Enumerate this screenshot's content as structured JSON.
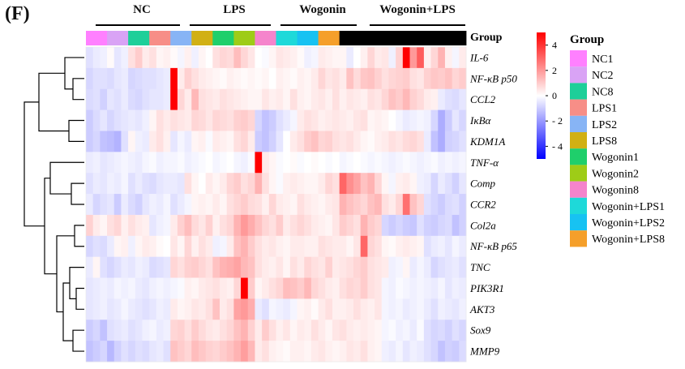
{
  "panel_label": "(F)",
  "group_headers": [
    "NC",
    "LPS",
    "Wogonin",
    "Wogonin+LPS"
  ],
  "colors": {
    "annotation": [
      "#ff80ff",
      "#d9a3f5",
      "#1ecf99",
      "#f78e87",
      "#87b4f5",
      "#d1b014",
      "#1fcf6b",
      "#9ecc17",
      "#f584cc",
      "#1ed9d9",
      "#17c2f2",
      "#f59f2a"
    ],
    "scale": {
      "low": "#0000ff",
      "mid": "#ffffff",
      "high": "#ff0000"
    }
  },
  "chart_data": {
    "type": "heatmap",
    "title": "",
    "annotation_title": "Group",
    "legend_title": "Group",
    "legend_entries": [
      "NC1",
      "NC2",
      "NC8",
      "LPS1",
      "LPS2",
      "LPS8",
      "Wogonin1",
      "Wogonin2",
      "Wogonin8",
      "Wogonin+LPS1",
      "Wogonin+LPS2",
      "Wogonin+LPS8"
    ],
    "color_scale": {
      "min": -5,
      "max": 5,
      "ticks": [
        4,
        2,
        0,
        -2,
        -4
      ]
    },
    "samples_per_group": 3,
    "rows": [
      "IL-6",
      "NF-κB p50",
      "CCL2",
      "IκBα",
      "KDM1A",
      "TNF-α",
      "Comp",
      "CCR2",
      "Col2a",
      "NF-κB p65",
      "TNC",
      "PIK3R1",
      "AKT3",
      "Sox9",
      "MMP9"
    ],
    "values": [
      [
        -0.6,
        -0.4,
        -0.3,
        0.1,
        -0.5,
        -0.3,
        0.6,
        1.0,
        0.4,
        0.6,
        0.2,
        0.3,
        0.1,
        -0.2,
        0.3,
        -0.3,
        0.2,
        0.0,
        0.6,
        0.8,
        0.7,
        1.3,
        0.8,
        0.5,
        0.0,
        -0.1,
        0.2,
        0.5,
        0.4,
        0.3,
        0.1,
        -0.3,
        -0.2,
        0.4,
        0.3,
        0.2,
        0.2,
        -0.4,
        0.0,
        0.3,
        0.8,
        0.4,
        0.5,
        -0.3,
        0.9,
        5.0,
        2.0,
        3.2,
        0.3,
        0.8,
        1.5,
        0.3,
        -0.2,
        0.4
      ],
      [
        -0.8,
        -0.6,
        -0.6,
        -0.7,
        -0.5,
        -0.4,
        -0.8,
        -0.7,
        -0.6,
        -0.6,
        -0.5,
        -0.4,
        5.0,
        0.4,
        0.9,
        0.6,
        0.4,
        0.3,
        0.2,
        0.1,
        0.3,
        0.2,
        0.1,
        0.2,
        0.1,
        0.2,
        0.0,
        0.3,
        0.2,
        0.1,
        0.3,
        0.2,
        0.4,
        0.8,
        0.5,
        0.6,
        0.4,
        1.2,
        0.7,
        1.1,
        1.2,
        0.9,
        0.6,
        0.8,
        0.9,
        1.0,
        0.6,
        0.5,
        0.9,
        1.1,
        1.0,
        1.2,
        0.8,
        1.0
      ],
      [
        -0.7,
        -0.6,
        -0.9,
        -0.5,
        -0.6,
        -0.4,
        -0.7,
        -0.8,
        -0.6,
        -0.5,
        -0.5,
        -0.4,
        5.0,
        0.8,
        0.4,
        1.4,
        0.6,
        0.5,
        0.4,
        0.6,
        0.5,
        0.4,
        0.3,
        0.2,
        0.2,
        0.5,
        0.3,
        0.4,
        0.2,
        0.6,
        0.3,
        0.2,
        0.4,
        0.5,
        0.3,
        0.6,
        0.3,
        0.5,
        0.4,
        0.3,
        0.6,
        0.5,
        0.8,
        1.2,
        1.0,
        1.4,
        0.9,
        0.7,
        0.4,
        0.3,
        -0.4,
        -0.6,
        -0.7,
        -0.5
      ],
      [
        -1.0,
        -0.7,
        -0.5,
        -0.8,
        -0.6,
        -0.5,
        -0.4,
        -0.5,
        -0.3,
        0.2,
        0.6,
        0.4,
        0.6,
        0.5,
        0.4,
        0.8,
        0.7,
        0.5,
        0.8,
        0.7,
        0.6,
        0.9,
        1.0,
        0.8,
        -0.8,
        -1.2,
        -1.0,
        -0.6,
        -0.4,
        -0.2,
        0.4,
        0.6,
        0.5,
        0.3,
        0.4,
        0.5,
        0.4,
        0.3,
        0.5,
        0.6,
        0.2,
        0.3,
        0.2,
        0.0,
        -0.2,
        -0.4,
        -0.3,
        -0.2,
        -0.3,
        -0.8,
        -1.6,
        -1.0,
        -0.5,
        -0.8
      ],
      [
        -1.0,
        -0.8,
        -1.2,
        -1.3,
        -1.5,
        -0.6,
        0.2,
        -0.3,
        -0.4,
        0.4,
        0.6,
        0.3,
        -0.5,
        -0.2,
        -0.4,
        0.2,
        0.3,
        -0.1,
        0.4,
        0.3,
        0.2,
        0.6,
        0.8,
        0.4,
        -1.0,
        -1.2,
        -0.9,
        -0.5,
        0.0,
        0.4,
        0.6,
        1.0,
        1.2,
        0.8,
        0.9,
        0.6,
        0.5,
        0.6,
        0.4,
        0.2,
        0.1,
        0.3,
        0.4,
        0.6,
        0.5,
        0.7,
        0.8,
        0.6,
        -0.4,
        -1.2,
        -1.6,
        -0.9,
        -0.8,
        -0.6
      ],
      [
        -0.4,
        -0.3,
        -0.5,
        -0.4,
        -0.3,
        -0.2,
        -0.3,
        -0.4,
        -0.2,
        -0.1,
        -0.3,
        -0.2,
        -0.2,
        -0.1,
        -0.3,
        -0.2,
        -0.1,
        0.0,
        -0.2,
        -0.1,
        0.0,
        -0.2,
        -0.3,
        -0.1,
        5.0,
        0.4,
        0.2,
        -0.1,
        0.0,
        0.1,
        -0.1,
        0.0,
        0.1,
        0.0,
        -0.1,
        0.0,
        -0.2,
        -0.1,
        0.0,
        -0.1,
        -0.2,
        -0.1,
        -0.2,
        -0.3,
        -0.2,
        -0.1,
        -0.2,
        -0.3,
        -0.2,
        -0.1,
        -0.3,
        -0.2,
        -0.3,
        -0.2
      ],
      [
        -0.6,
        -0.4,
        -0.5,
        -0.3,
        -0.4,
        -0.2,
        -0.6,
        -0.4,
        -0.6,
        -0.7,
        -0.5,
        -0.4,
        -0.4,
        -0.5,
        0.6,
        0.2,
        0.0,
        0.4,
        0.2,
        0.4,
        0.8,
        1.0,
        0.6,
        0.8,
        1.5,
        0.6,
        0.2,
        -0.1,
        0.3,
        0.4,
        0.3,
        0.2,
        0.2,
        0.4,
        0.8,
        0.6,
        3.0,
        2.2,
        1.8,
        1.2,
        1.5,
        0.8,
        0.2,
        -0.2,
        0.3,
        0.4,
        0.2,
        -0.3,
        -0.4,
        -0.8,
        -0.4,
        -0.6,
        -0.9,
        -0.5
      ],
      [
        -0.4,
        -0.8,
        -0.6,
        -0.5,
        -1.0,
        -0.4,
        -0.7,
        -0.9,
        -0.5,
        -0.3,
        -0.4,
        -0.2,
        -0.6,
        -0.4,
        -0.2,
        0.2,
        0.3,
        0.2,
        0.4,
        0.2,
        0.6,
        0.8,
        1.0,
        0.7,
        0.6,
        0.3,
        0.8,
        0.4,
        0.3,
        0.2,
        0.6,
        0.4,
        0.3,
        0.2,
        0.4,
        0.5,
        1.5,
        1.2,
        1.0,
        0.8,
        1.2,
        1.4,
        0.6,
        0.4,
        0.8,
        2.8,
        1.2,
        0.8,
        -0.6,
        -0.8,
        -1.0,
        -0.7,
        -0.6,
        -0.9
      ],
      [
        0.9,
        0.4,
        0.2,
        0.6,
        0.8,
        0.3,
        0.6,
        0.4,
        0.3,
        -0.5,
        -0.3,
        -0.2,
        0.4,
        0.9,
        1.3,
        0.7,
        0.5,
        0.9,
        0.3,
        0.6,
        0.8,
        1.5,
        2.0,
        1.6,
        1.2,
        0.8,
        0.6,
        1.0,
        0.4,
        0.6,
        0.8,
        0.6,
        0.4,
        0.3,
        0.2,
        0.5,
        1.0,
        0.8,
        0.6,
        1.5,
        1.0,
        0.8,
        -0.8,
        -1.0,
        -0.8,
        -1.0,
        -1.1,
        -0.6,
        -0.9,
        -1.0,
        -0.8,
        -0.7,
        -1.2,
        -0.9
      ],
      [
        -0.8,
        -0.6,
        -0.7,
        -0.4,
        0.2,
        0.3,
        -0.3,
        0.2,
        0.4,
        0.3,
        0.1,
        0.0,
        0.5,
        0.2,
        0.8,
        0.3,
        0.6,
        0.4,
        -0.3,
        -0.2,
        0.4,
        1.2,
        1.5,
        1.0,
        0.6,
        0.4,
        0.5,
        0.3,
        0.2,
        0.4,
        0.4,
        0.3,
        0.3,
        0.6,
        0.5,
        0.4,
        0.4,
        0.2,
        0.5,
        3.0,
        0.8,
        0.6,
        0.2,
        0.1,
        0.3,
        0.4,
        0.3,
        0.2,
        -0.6,
        -0.4,
        -0.3,
        -0.5,
        -0.2,
        -0.4
      ],
      [
        -0.4,
        0.2,
        -0.6,
        -0.8,
        -0.6,
        -0.4,
        -0.5,
        -0.3,
        -0.4,
        -0.7,
        -0.6,
        -0.5,
        0.8,
        0.6,
        0.9,
        1.0,
        0.8,
        0.6,
        1.2,
        1.5,
        1.6,
        1.8,
        1.4,
        1.2,
        0.6,
        0.4,
        0.3,
        0.5,
        0.2,
        0.6,
        0.4,
        0.8,
        0.6,
        0.5,
        0.9,
        0.4,
        0.5,
        0.6,
        0.8,
        1.0,
        0.6,
        0.5,
        0.4,
        -0.3,
        -0.2,
        0.2,
        -0.4,
        -0.2,
        -0.4,
        -0.8,
        -0.6,
        -0.5,
        -0.4,
        -0.6
      ],
      [
        -0.5,
        -0.4,
        -0.3,
        -0.4,
        -0.2,
        -0.3,
        -0.2,
        -0.4,
        -0.5,
        -0.3,
        -0.2,
        -0.3,
        -0.2,
        -0.1,
        0.3,
        0.2,
        0.4,
        0.5,
        0.6,
        0.4,
        0.3,
        0.8,
        5.0,
        1.0,
        0.2,
        0.4,
        0.6,
        0.8,
        1.3,
        1.2,
        1.0,
        1.4,
        0.8,
        0.6,
        0.4,
        0.3,
        0.6,
        0.8,
        0.7,
        1.0,
        0.6,
        0.5,
        -0.2,
        -0.3,
        -0.1,
        -0.2,
        -0.3,
        -0.2,
        -0.3,
        -0.4,
        -0.2,
        -0.5,
        -0.3,
        -0.4
      ],
      [
        -0.5,
        -0.4,
        -0.3,
        -0.5,
        -0.4,
        -0.2,
        -0.4,
        -0.5,
        -0.6,
        -0.5,
        -0.3,
        -0.4,
        0.4,
        0.2,
        0.3,
        0.5,
        0.4,
        0.6,
        1.2,
        0.4,
        0.6,
        1.8,
        2.0,
        1.6,
        -0.4,
        -0.6,
        -0.2,
        -0.3,
        -0.4,
        -0.2,
        0.2,
        0.3,
        0.1,
        0.4,
        0.6,
        0.3,
        0.3,
        0.4,
        0.6,
        0.4,
        0.3,
        0.5,
        -0.2,
        -0.3,
        -0.2,
        -0.4,
        -0.3,
        -0.2,
        -0.4,
        -0.6,
        -0.3,
        -0.4,
        -0.5,
        -0.3
      ],
      [
        -1.0,
        -0.8,
        -1.2,
        -0.6,
        -0.5,
        -0.4,
        -0.6,
        -0.5,
        -0.3,
        -0.2,
        -0.4,
        -0.3,
        0.8,
        0.9,
        0.6,
        1.0,
        0.7,
        0.5,
        0.4,
        0.6,
        0.8,
        1.2,
        1.5,
        0.9,
        0.4,
        1.0,
        0.6,
        0.3,
        0.5,
        0.2,
        0.4,
        0.3,
        0.6,
        0.4,
        0.2,
        0.5,
        0.6,
        0.4,
        0.3,
        0.4,
        0.3,
        0.2,
        -0.2,
        -0.1,
        -0.3,
        -0.2,
        -0.4,
        -0.1,
        -0.6,
        -0.8,
        -0.7,
        -0.9,
        -0.6,
        -0.8
      ],
      [
        -1.2,
        -1.0,
        -0.8,
        -1.4,
        -0.9,
        -0.6,
        -0.8,
        -0.6,
        -0.7,
        -0.5,
        -0.4,
        -0.6,
        1.2,
        1.0,
        0.8,
        1.3,
        1.1,
        0.9,
        0.8,
        1.0,
        1.2,
        1.5,
        1.9,
        1.4,
        0.4,
        0.6,
        0.3,
        0.2,
        0.1,
        0.3,
        0.3,
        0.2,
        0.4,
        0.5,
        0.3,
        0.2,
        0.3,
        0.5,
        0.4,
        0.6,
        0.3,
        0.2,
        -0.3,
        -0.4,
        -0.2,
        -0.5,
        -0.3,
        -0.4,
        -0.6,
        -0.8,
        -1.2,
        -0.9,
        -1.0,
        -0.7
      ]
    ]
  }
}
